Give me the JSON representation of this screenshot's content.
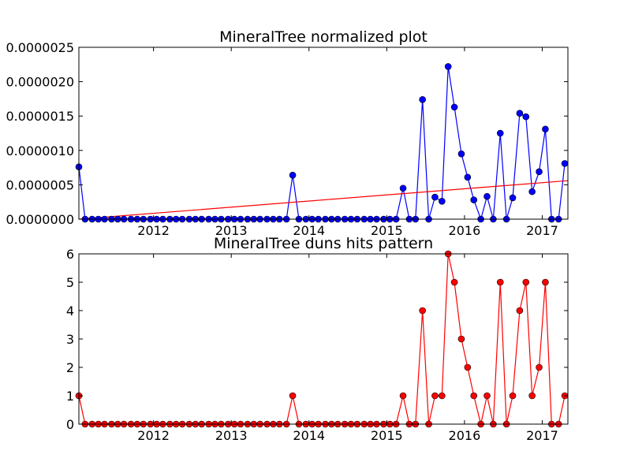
{
  "chart_data": [
    {
      "type": "line",
      "title": "MineralTree normalized plot",
      "xlabel": "",
      "ylabel": "",
      "xlim": [
        2011.04,
        2017.33
      ],
      "ylim": [
        0,
        2.5e-06
      ],
      "x_ticks": [
        {
          "value": 2012,
          "label": "2012"
        },
        {
          "value": 2013,
          "label": "2013"
        },
        {
          "value": 2014,
          "label": "2014"
        },
        {
          "value": 2015,
          "label": "2015"
        },
        {
          "value": 2016,
          "label": "2016"
        },
        {
          "value": 2017,
          "label": "2017"
        }
      ],
      "y_ticks": [
        {
          "value": 0,
          "label": "0.0000000"
        },
        {
          "value": 5e-07,
          "label": "0.0000005"
        },
        {
          "value": 1e-06,
          "label": "0.0000010"
        },
        {
          "value": 1.5e-06,
          "label": "0.0000015"
        },
        {
          "value": 2e-06,
          "label": "0.0000020"
        },
        {
          "value": 2.5e-06,
          "label": "0.0000025"
        }
      ],
      "grid": false,
      "series": [
        {
          "color": "#0000ff",
          "marker_color": "#0000ff",
          "x": [
            2011.04,
            2011.12,
            2011.21,
            2011.29,
            2011.37,
            2011.46,
            2011.54,
            2011.62,
            2011.71,
            2011.79,
            2011.87,
            2011.96,
            2012.04,
            2012.12,
            2012.21,
            2012.29,
            2012.37,
            2012.46,
            2012.54,
            2012.62,
            2012.71,
            2012.79,
            2012.87,
            2012.96,
            2013.04,
            2013.12,
            2013.21,
            2013.29,
            2013.37,
            2013.46,
            2013.54,
            2013.62,
            2013.71,
            2013.79,
            2013.87,
            2013.96,
            2014.04,
            2014.12,
            2014.21,
            2014.29,
            2014.37,
            2014.46,
            2014.54,
            2014.62,
            2014.71,
            2014.79,
            2014.87,
            2014.96,
            2015.04,
            2015.12,
            2015.21,
            2015.29,
            2015.37,
            2015.46,
            2015.54,
            2015.62,
            2015.71,
            2015.79,
            2015.87,
            2015.96,
            2016.04,
            2016.12,
            2016.21,
            2016.29,
            2016.37,
            2016.46,
            2016.54,
            2016.62,
            2016.71,
            2016.79,
            2016.87,
            2016.96,
            2017.04,
            2017.12,
            2017.21,
            2017.29
          ],
          "y": [
            7.6e-07,
            0,
            0,
            0,
            0,
            0,
            0,
            0,
            0,
            0,
            0,
            0,
            0,
            0,
            0,
            0,
            0,
            0,
            0,
            0,
            0,
            0,
            0,
            0,
            0,
            0,
            0,
            0,
            0,
            0,
            0,
            0,
            0,
            6.4e-07,
            0,
            0,
            0,
            0,
            0,
            0,
            0,
            0,
            0,
            0,
            0,
            0,
            0,
            0,
            0,
            0,
            4.5e-07,
            0,
            0,
            1.74e-06,
            0,
            3.2e-07,
            2.6e-07,
            2.22e-06,
            1.63e-06,
            9.5e-07,
            6.1e-07,
            2.8e-07,
            0,
            3.3e-07,
            0,
            1.25e-06,
            0,
            3.1e-07,
            1.54e-06,
            1.49e-06,
            4e-07,
            6.9e-07,
            1.31e-06,
            0,
            0,
            8.1e-07
          ]
        }
      ],
      "trendline": {
        "color": "#ff0000",
        "x": [
          2011.04,
          2017.33
        ],
        "y": [
          0,
          5.6e-07
        ]
      }
    },
    {
      "type": "line",
      "title": "MineralTree duns hits pattern",
      "xlabel": "",
      "ylabel": "",
      "xlim": [
        2011.04,
        2017.33
      ],
      "ylim": [
        0,
        6
      ],
      "x_ticks": [
        {
          "value": 2012,
          "label": "2012"
        },
        {
          "value": 2013,
          "label": "2013"
        },
        {
          "value": 2014,
          "label": "2014"
        },
        {
          "value": 2015,
          "label": "2015"
        },
        {
          "value": 2016,
          "label": "2016"
        },
        {
          "value": 2017,
          "label": "2017"
        }
      ],
      "y_ticks": [
        {
          "value": 0,
          "label": "0"
        },
        {
          "value": 1,
          "label": "1"
        },
        {
          "value": 2,
          "label": "2"
        },
        {
          "value": 3,
          "label": "3"
        },
        {
          "value": 4,
          "label": "4"
        },
        {
          "value": 5,
          "label": "5"
        },
        {
          "value": 6,
          "label": "6"
        }
      ],
      "grid": false,
      "series": [
        {
          "color": "#ff0000",
          "marker_color": "#ff0000",
          "x": [
            2011.04,
            2011.12,
            2011.21,
            2011.29,
            2011.37,
            2011.46,
            2011.54,
            2011.62,
            2011.71,
            2011.79,
            2011.87,
            2011.96,
            2012.04,
            2012.12,
            2012.21,
            2012.29,
            2012.37,
            2012.46,
            2012.54,
            2012.62,
            2012.71,
            2012.79,
            2012.87,
            2012.96,
            2013.04,
            2013.12,
            2013.21,
            2013.29,
            2013.37,
            2013.46,
            2013.54,
            2013.62,
            2013.71,
            2013.79,
            2013.87,
            2013.96,
            2014.04,
            2014.12,
            2014.21,
            2014.29,
            2014.37,
            2014.46,
            2014.54,
            2014.62,
            2014.71,
            2014.79,
            2014.87,
            2014.96,
            2015.04,
            2015.12,
            2015.21,
            2015.29,
            2015.37,
            2015.46,
            2015.54,
            2015.62,
            2015.71,
            2015.79,
            2015.87,
            2015.96,
            2016.04,
            2016.12,
            2016.21,
            2016.29,
            2016.37,
            2016.46,
            2016.54,
            2016.62,
            2016.71,
            2016.79,
            2016.87,
            2016.96,
            2017.04,
            2017.12,
            2017.21,
            2017.29
          ],
          "y": [
            1,
            0,
            0,
            0,
            0,
            0,
            0,
            0,
            0,
            0,
            0,
            0,
            0,
            0,
            0,
            0,
            0,
            0,
            0,
            0,
            0,
            0,
            0,
            0,
            0,
            0,
            0,
            0,
            0,
            0,
            0,
            0,
            0,
            1,
            0,
            0,
            0,
            0,
            0,
            0,
            0,
            0,
            0,
            0,
            0,
            0,
            0,
            0,
            0,
            0,
            1,
            0,
            0,
            4,
            0,
            1,
            1,
            6,
            5,
            3,
            2,
            1,
            0,
            1,
            0,
            5,
            0,
            1,
            4,
            5,
            1,
            2,
            5,
            0,
            0,
            1
          ]
        }
      ]
    }
  ]
}
